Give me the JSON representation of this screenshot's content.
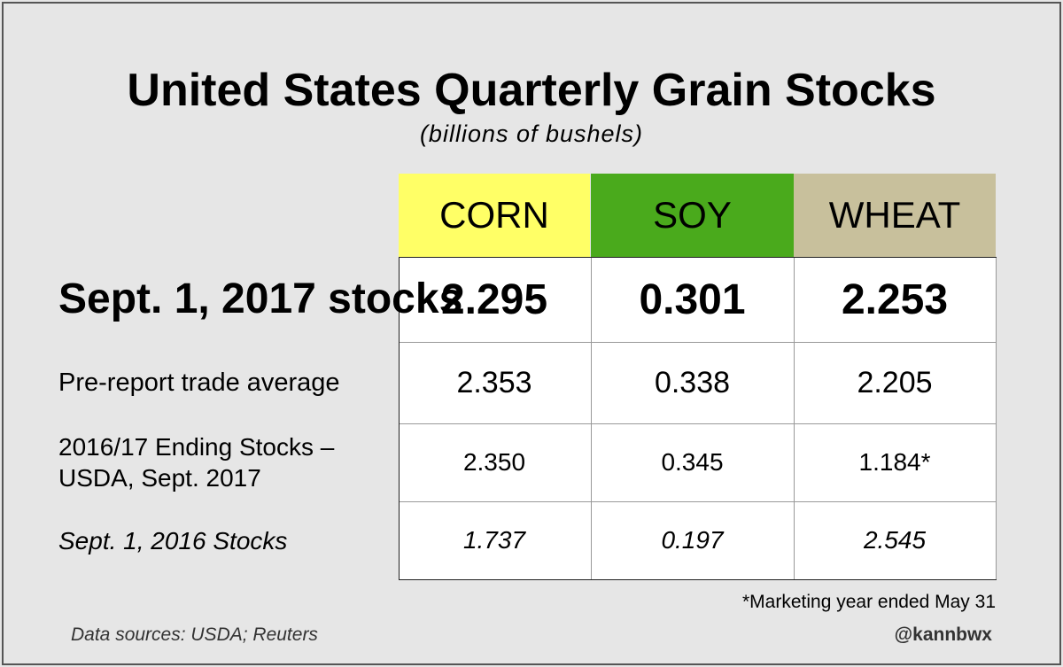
{
  "chart_data": {
    "type": "table",
    "title": "United States Quarterly Grain Stocks",
    "subtitle": "(billions of bushels)",
    "columns": [
      {
        "label": "CORN",
        "color": "#ffff66"
      },
      {
        "label": "SOY",
        "color": "#4aaa1c"
      },
      {
        "label": "WHEAT",
        "color": "#c8c09c"
      }
    ],
    "rows": [
      {
        "label": "Sept. 1, 2017 stocks",
        "values": [
          "2.295",
          "0.301",
          "2.253"
        ]
      },
      {
        "label": "Pre-report trade average",
        "values": [
          "2.353",
          "0.338",
          "2.205"
        ]
      },
      {
        "label": "2016/17 Ending Stocks – USDA, Sept. 2017",
        "label_lines": [
          "2016/17 Ending Stocks –",
          "USDA, Sept. 2017"
        ],
        "values": [
          "2.350",
          "0.345",
          "1.184*"
        ]
      },
      {
        "label": "Sept. 1, 2016 Stocks",
        "values": [
          "1.737",
          "0.197",
          "2.545"
        ]
      }
    ],
    "footnote": "*Marketing year ended May 31",
    "source": "Data sources: USDA; Reuters",
    "credit": "@kannbwx"
  }
}
